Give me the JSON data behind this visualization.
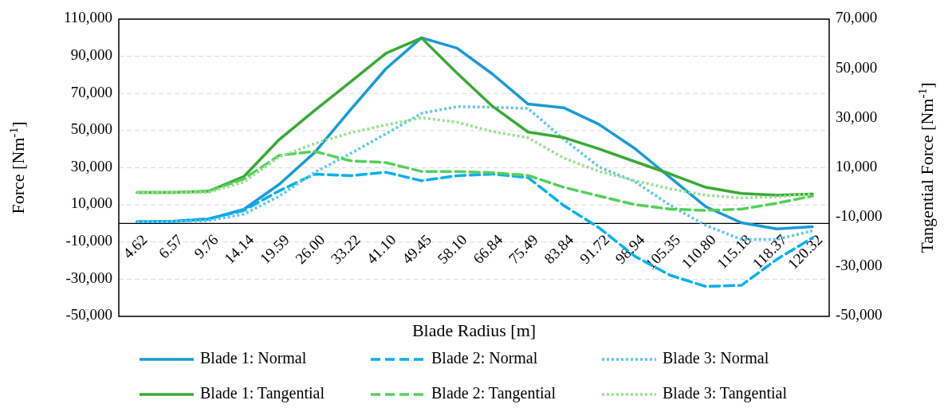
{
  "chart_data": {
    "type": "line",
    "xlabel": "Blade Radius [m]",
    "ylabel": "Force [Nm$^{-1}$]",
    "y2label": "Tangential Force [Nm$^{-1}$]",
    "categories": [
      "4.62",
      "6.57",
      "9.76",
      "14.14",
      "19.59",
      "26.00",
      "33.22",
      "41.10",
      "49.45",
      "58.10",
      "66.84",
      "75.49",
      "83.84",
      "91.72",
      "98.94",
      "105.35",
      "110.80",
      "115.18",
      "118.37",
      "120.32"
    ],
    "ylim": [
      -50000,
      110000
    ],
    "yticks": [
      {
        "value": -50000,
        "label": "-50,000"
      },
      {
        "value": -30000,
        "label": "-30,000"
      },
      {
        "value": -10000,
        "label": "-10,000"
      },
      {
        "value": 10000,
        "label": "10,000"
      },
      {
        "value": 30000,
        "label": "30,000"
      },
      {
        "value": 50000,
        "label": "50,000"
      },
      {
        "value": 70000,
        "label": "70,000"
      },
      {
        "value": 90000,
        "label": "90,000"
      },
      {
        "value": 110000,
        "label": "110,000"
      }
    ],
    "y2lim": [
      -50000,
      70000
    ],
    "y2ticks": [
      {
        "value": -50000,
        "label": "-50,000"
      },
      {
        "value": -30000,
        "label": "-30,000"
      },
      {
        "value": -10000,
        "label": "-10,000"
      },
      {
        "value": 10000,
        "label": "10,000"
      },
      {
        "value": 30000,
        "label": "30,000"
      },
      {
        "value": 50000,
        "label": "50,000"
      },
      {
        "value": 70000,
        "label": "70,000"
      }
    ],
    "grid": "y",
    "legend": "bottom",
    "marker": "none",
    "series": [
      {
        "name": "Blade 1: Normal",
        "color": "#1a9ad6",
        "line_style": "solid",
        "values": [
          900,
          1200,
          2300,
          7600,
          21100,
          38300,
          61200,
          83300,
          100000,
          94400,
          80400,
          64300,
          62300,
          53300,
          40400,
          24700,
          9000,
          400,
          -2900,
          -1700
        ]
      },
      {
        "name": "Blade 2: Normal",
        "color": "#00b0f0",
        "line_style": "dashed",
        "values": [
          900,
          1200,
          2500,
          7000,
          17600,
          26600,
          25700,
          27600,
          23000,
          25700,
          26600,
          24700,
          9700,
          -2400,
          -17600,
          -27900,
          -33900,
          -33300,
          -19300,
          -7700
        ]
      },
      {
        "name": "Blade 3: Normal",
        "color": "#5bc8ee",
        "line_style": "dotted",
        "values": [
          900,
          1000,
          1500,
          5000,
          14700,
          27600,
          37600,
          48300,
          59300,
          62900,
          62600,
          61900,
          45400,
          30400,
          22600,
          9700,
          -1000,
          -8600,
          -8600,
          -3900
        ]
      },
      {
        "name": "Blade 1: Tangential",
        "color": "#3aaa35",
        "line_style": "solid",
        "axis": "y2",
        "values": [
          0,
          0,
          500,
          6400,
          21400,
          33200,
          44600,
          56200,
          62400,
          48200,
          34800,
          24400,
          22200,
          17600,
          12500,
          7500,
          2100,
          -400,
          -1100,
          -600
        ]
      },
      {
        "name": "Blade 2: Tangential",
        "color": "#55d05a",
        "line_style": "dashed",
        "axis": "y2",
        "values": [
          0,
          0,
          500,
          5500,
          15000,
          16600,
          12800,
          12100,
          8500,
          8500,
          8000,
          6900,
          2100,
          -1400,
          -4900,
          -6700,
          -7200,
          -6700,
          -4300,
          -1400
        ]
      },
      {
        "name": "Blade 3: Tangential",
        "color": "#99e28f",
        "line_style": "dotted",
        "axis": "y2",
        "values": [
          0,
          0,
          0,
          4200,
          14400,
          19800,
          24100,
          27300,
          30200,
          28400,
          24600,
          22100,
          13900,
          8500,
          4800,
          1500,
          -1100,
          -2200,
          -1700,
          -600
        ]
      }
    ]
  }
}
